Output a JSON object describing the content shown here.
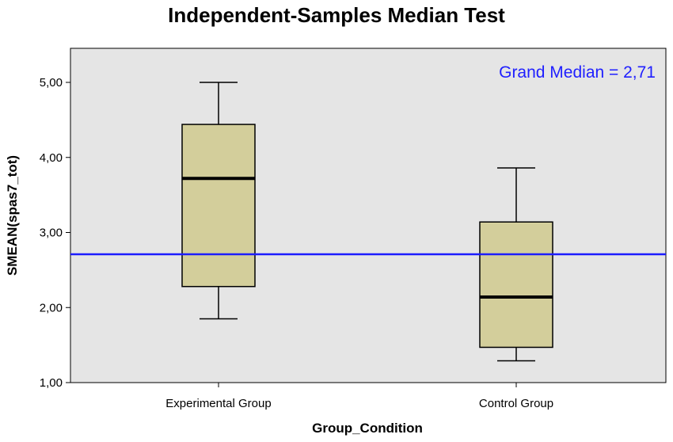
{
  "chart_data": {
    "type": "box",
    "title": "Independent-Samples Median Test",
    "xlabel": "Group_Condition",
    "ylabel": "SMEAN(spas7_tot)",
    "ylim": [
      1,
      5.5
    ],
    "y_ticks": [
      {
        "value": 1,
        "label": "1,00"
      },
      {
        "value": 2,
        "label": "2,00"
      },
      {
        "value": 3,
        "label": "3,00"
      },
      {
        "value": 4,
        "label": "4,00"
      },
      {
        "value": 5,
        "label": "5,00"
      }
    ],
    "categories": [
      "Experimental Group",
      "Control Group"
    ],
    "boxes": [
      {
        "category": "Experimental Group",
        "min": 1.85,
        "q1": 2.28,
        "median": 3.72,
        "q3": 4.44,
        "max": 5.0
      },
      {
        "category": "Control Group",
        "min": 1.29,
        "q1": 1.47,
        "median": 2.14,
        "q3": 3.14,
        "max": 3.86
      }
    ],
    "grand_median": {
      "value": 2.71,
      "label": "Grand Median = 2,71"
    },
    "grid": false,
    "colors": {
      "plot_background": "#e5e5e5",
      "box_fill": "#d3ce9b",
      "reference_line": "#1c1cff",
      "annotation_text": "#2020ff"
    }
  }
}
